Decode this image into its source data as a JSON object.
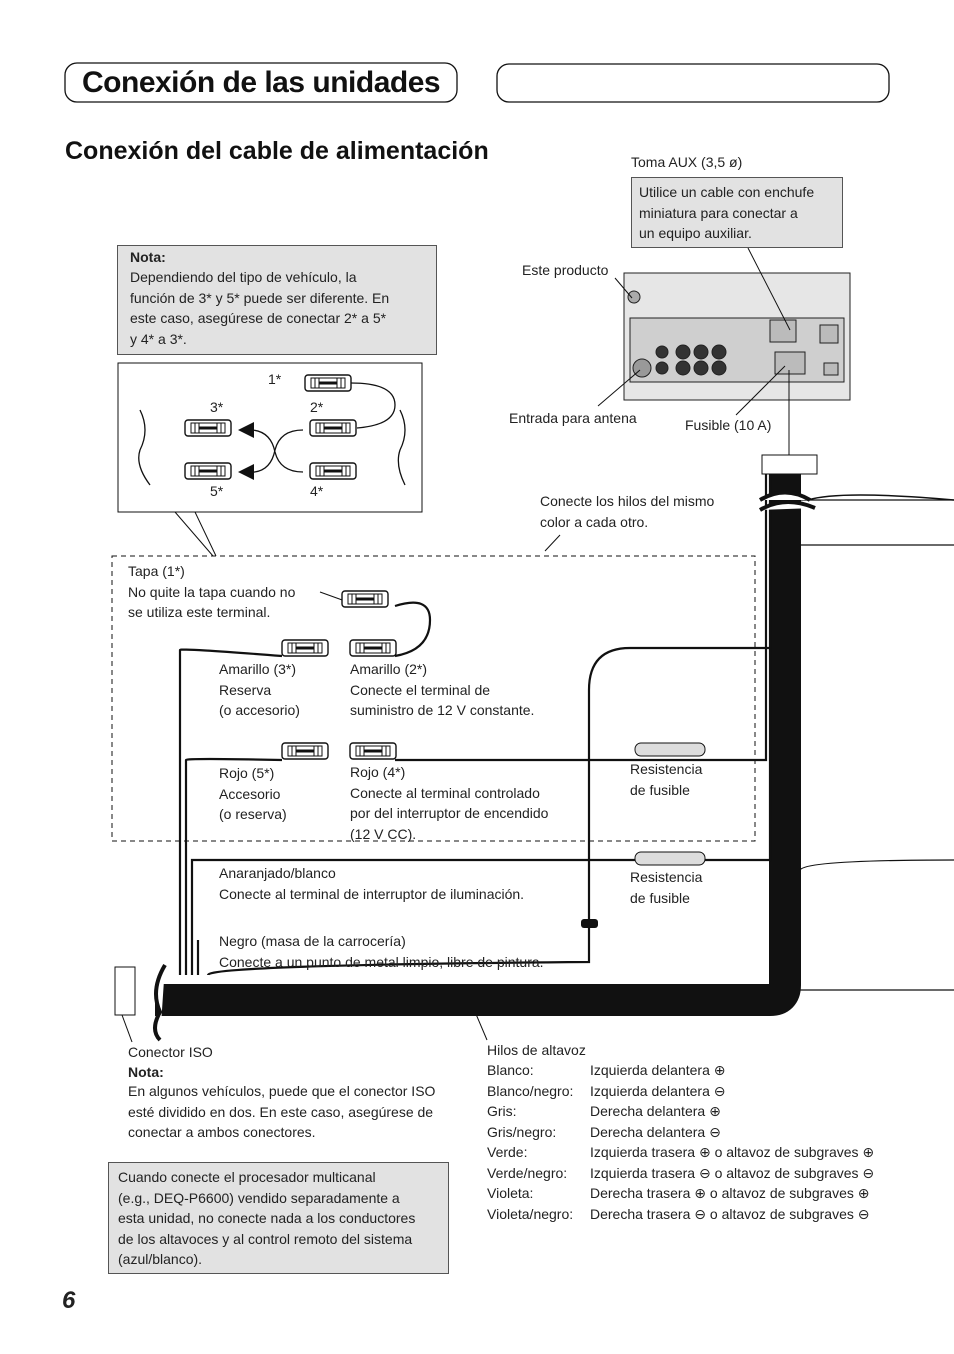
{
  "header": {
    "title": "Conexión de las unidades"
  },
  "section_title": "Conexión del cable de alimentación",
  "aux": {
    "label": "Toma AUX (3,5 ø)",
    "note": [
      "Utilice un cable con enchufe",
      "miniatura para conectar a",
      "un equipo auxiliar."
    ]
  },
  "device": {
    "product": "Este producto",
    "antenna": "Entrada para antena",
    "fuse": "Fusible (10 A)"
  },
  "note": {
    "heading": "Nota:",
    "lines": [
      "Dependiendo del tipo de vehículo, la",
      "función de 3* y 5* puede ser diferente. En",
      "este caso, asegúrese de conectar 2* a 5*",
      "y 4* a 3*."
    ]
  },
  "connectors": {
    "c1": "1*",
    "c2": "2*",
    "c3": "3*",
    "c4": "4*",
    "c5": "5*"
  },
  "match_colors": [
    "Conecte los hilos del mismo",
    "color a cada otro."
  ],
  "cap": [
    "Tapa (1*)",
    "No quite la tapa cuando no",
    "se utiliza este terminal."
  ],
  "yellow_3": [
    "Amarillo (3*)",
    "Reserva",
    "(o accesorio)"
  ],
  "yellow_2": [
    "Amarillo (2*)",
    "Conecte el terminal de",
    "suministro de 12 V constante."
  ],
  "red_5": [
    "Rojo (5*)",
    "Accesorio",
    "(o reserva)"
  ],
  "red_4": [
    "Rojo (4*)",
    "Conecte al terminal controlado",
    "por del interruptor de encendido",
    "(12 V CC)."
  ],
  "fuse_resistor_1": [
    "Resistencia",
    "de fusible"
  ],
  "fuse_resistor_2": [
    "Resistencia",
    "de fusible"
  ],
  "orange_white": [
    "Anaranjado/blanco",
    "Conecte al terminal de interruptor de iluminación."
  ],
  "black": [
    "Negro (masa de la carrocería)",
    "Conecte a un punto de metal limpio, libre de pintura."
  ],
  "iso": {
    "label": "Conector ISO",
    "heading": "Nota:",
    "lines": [
      "En algunos vehículos, puede que el conector ISO",
      "esté dividido en dos. En este caso, asegúrese de",
      "conectar a ambos conectores."
    ]
  },
  "speaker": {
    "title": "Hilos de altavoz",
    "rows": [
      [
        "Blanco:",
        "Izquierda delantera ⊕"
      ],
      [
        "Blanco/negro:",
        "Izquierda delantera ⊖"
      ],
      [
        "Gris:",
        "Derecha delantera ⊕"
      ],
      [
        "Gris/negro:",
        "Derecha delantera ⊖"
      ],
      [
        "Verde:",
        "Izquierda trasera ⊕ o altavoz de subgraves ⊕"
      ],
      [
        "Verde/negro:",
        "Izquierda trasera ⊖ o altavoz de subgraves ⊖"
      ],
      [
        "Violeta:",
        "Derecha trasera ⊕ o altavoz de subgraves ⊕"
      ],
      [
        "Violeta/negro:",
        "Derecha trasera ⊖ o altavoz de subgraves ⊖"
      ]
    ]
  },
  "processor_note": [
    "Cuando conecte el procesador multicanal",
    "(e.g., DEQ-P6600) vendido separadamente a",
    "esta unidad, no conecte nada a los conductores",
    "de los altavoces y al control remoto del sistema",
    "(azul/blanco)."
  ],
  "page_number": "6"
}
